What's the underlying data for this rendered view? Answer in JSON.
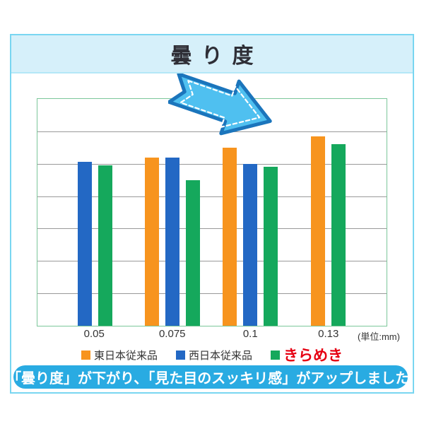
{
  "header": {
    "title": "曇り度"
  },
  "chart_data": {
    "type": "bar",
    "title": "曇り度",
    "categories": [
      "0.05",
      "0.075",
      "0.1",
      "0.13"
    ],
    "unit_label": "(単位:mm)",
    "xlabel": "",
    "ylabel": "",
    "ylim": [
      0,
      7
    ],
    "gridline_count": 6,
    "y_axis_labels_visible": false,
    "grid": true,
    "legend_position": "bottom",
    "series": [
      {
        "name": "東日本従来品",
        "color": "#f7941e",
        "values": [
          null,
          5.2,
          5.5,
          5.85
        ]
      },
      {
        "name": "西日本従来品",
        "color": "#2368c4",
        "values": [
          5.05,
          5.2,
          5.0,
          null
        ]
      },
      {
        "name": "きらめき",
        "color": "#15a85c",
        "label_color": "#e60012",
        "label_bold": true,
        "values": [
          4.95,
          4.5,
          4.9,
          5.6
        ]
      }
    ],
    "annotation": {
      "type": "arrow",
      "direction": "down-right",
      "fill": "#4fc0f0",
      "stroke": "#1b75bc",
      "inner_line": "white-dashed"
    }
  },
  "caption": {
    "text": "「曇り度」が下がり、「見た目のスッキリ感」がアップしました!",
    "background": "#29abe2"
  },
  "colors": {
    "panel_border": "#79d6f1",
    "header_fill": "#d6f0fa",
    "plot_border": "#7cc79a",
    "gridline": "#999999",
    "title_text": "#2e2e36",
    "axis_text": "#333333",
    "kirameki_red": "#e60012"
  }
}
